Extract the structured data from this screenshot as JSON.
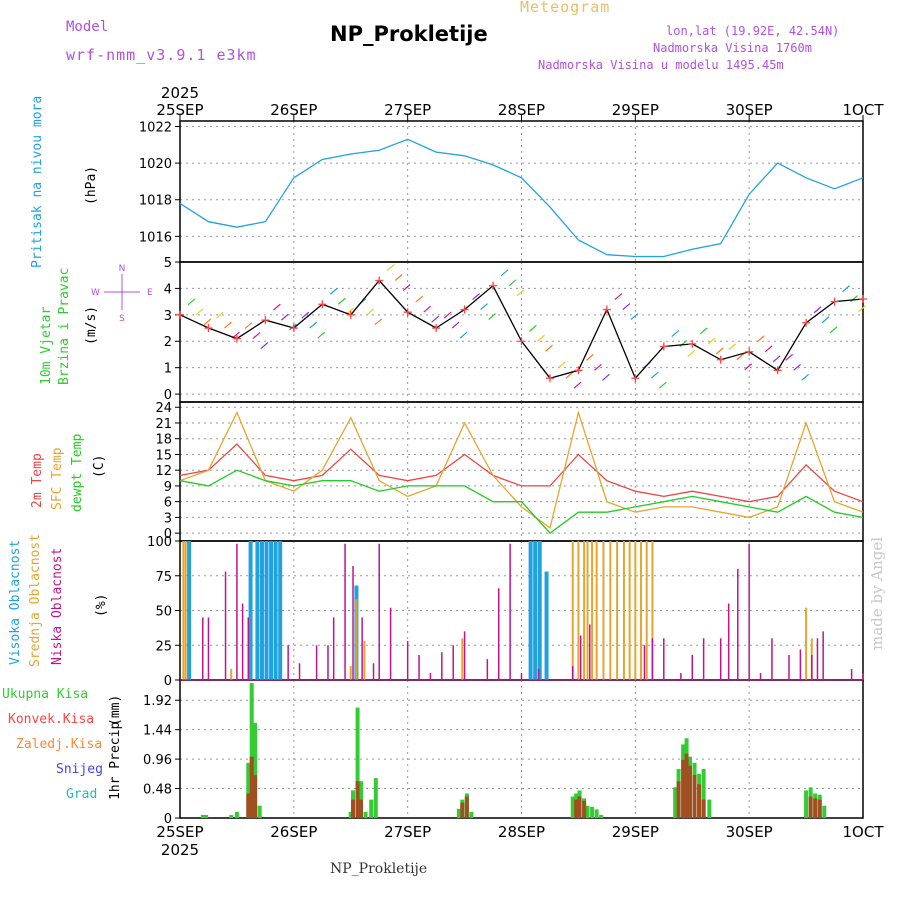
{
  "header": {
    "title": "NP_Prokletije",
    "meteogram_label": "Meteogram",
    "model_label": "Model",
    "model_name": "wrf-nmm_v3.9.1 e3km",
    "lonlat": "lon,lat (19.92E, 42.54N)",
    "altitude": "Nadmorska Visina 1760m",
    "altitude_model": "Nadmorska Visina u modelu 1495.45m"
  },
  "footer": {
    "station": "NP_Prokletije",
    "made_by": "made by Angel"
  },
  "colors": {
    "pressure": "#1fa3e0",
    "wind_label": "#2ecc2e",
    "wind_speed": "#000000",
    "wind_points": "#ff4444",
    "t2m": "#ee4444",
    "sfc": "#e6a530",
    "dewpt": "#22cc22",
    "high_cloud": "#1fa3e0",
    "mid_cloud": "#e6a530",
    "low_cloud": "#c0148c",
    "total_precip": "#33cc33",
    "conv_precip": "#a05020"
  },
  "chart_data": [
    {
      "panel": "pressure",
      "type": "line",
      "ylabel": "Pritisak na nivou mora",
      "yunit": "(hPa)",
      "yticks": [
        1016,
        1018,
        1020,
        1022
      ],
      "ylim": [
        1014.6,
        1022.3
      ],
      "top_labels": {
        "year": "2025",
        "days": [
          "25SEP",
          "26SEP",
          "27SEP",
          "28SEP",
          "29SEP",
          "30SEP",
          "1OCT"
        ]
      },
      "x_days": [
        0,
        0.25,
        0.5,
        0.75,
        1,
        1.25,
        1.5,
        1.75,
        2,
        2.25,
        2.5,
        2.75,
        3,
        3.25,
        3.5,
        3.75,
        4,
        4.25,
        4.5,
        4.75,
        5,
        5.25,
        5.5,
        5.75,
        6
      ],
      "values": [
        1017.8,
        1016.8,
        1016.5,
        1016.8,
        1019.2,
        1020.2,
        1020.5,
        1020.7,
        1021.3,
        1020.6,
        1020.4,
        1019.9,
        1019.2,
        1017.6,
        1015.8,
        1015.0,
        1014.9,
        1014.9,
        1015.3,
        1015.6,
        1018.3,
        1020.0,
        1019.2,
        1018.6,
        1019.2
      ]
    },
    {
      "panel": "wind",
      "type": "line",
      "ylabel": "10m Vjetar Brzina i Pravac",
      "yunit": "(m/s)",
      "compass": {
        "n": "N",
        "s": "S",
        "w": "W",
        "e": "E"
      },
      "yticks": [
        0,
        1,
        2,
        3,
        4,
        5
      ],
      "ylim": [
        -0.3,
        5
      ],
      "x_days": [
        0,
        0.25,
        0.5,
        0.75,
        1,
        1.25,
        1.5,
        1.75,
        2,
        2.25,
        2.5,
        2.75,
        3,
        3.25,
        3.5,
        3.75,
        4,
        4.25,
        4.5,
        4.75,
        5,
        5.25,
        5.5,
        5.75,
        6
      ],
      "speed": [
        3.0,
        2.5,
        2.1,
        2.8,
        2.5,
        3.4,
        3.0,
        4.3,
        3.1,
        2.5,
        3.2,
        4.1,
        2.0,
        0.6,
        0.9,
        3.2,
        0.6,
        1.8,
        1.9,
        1.3,
        1.6,
        0.9,
        2.7,
        3.5,
        3.6
      ]
    },
    {
      "panel": "temperature",
      "type": "line",
      "ylabel": "2m Temp, SFC Temp, dewpt Temp",
      "yunit": "(C)",
      "yticks": [
        0,
        3,
        6,
        9,
        12,
        15,
        18,
        21,
        24
      ],
      "ylim": [
        -1.5,
        25
      ],
      "x_days": [
        0,
        0.25,
        0.5,
        0.75,
        1,
        1.25,
        1.5,
        1.75,
        2,
        2.25,
        2.5,
        2.75,
        3,
        3.25,
        3.5,
        3.75,
        4,
        4.25,
        4.5,
        4.75,
        5,
        5.25,
        5.5,
        5.75,
        6
      ],
      "series": [
        {
          "name": "2m Temp",
          "values": [
            11,
            12,
            17,
            11,
            10,
            11,
            16,
            11,
            10,
            11,
            15,
            11,
            9,
            9,
            15,
            10,
            8,
            7,
            8,
            7,
            6,
            7,
            13,
            8,
            6
          ]
        },
        {
          "name": "SFC Temp",
          "values": [
            10,
            12,
            23,
            10,
            8,
            12,
            22,
            10,
            7,
            9,
            21,
            11,
            5,
            1,
            23,
            6,
            4,
            5,
            5,
            4,
            3,
            5,
            21,
            6,
            4
          ]
        },
        {
          "name": "dewpt Temp",
          "values": [
            10,
            9,
            12,
            10,
            9,
            10,
            10,
            8,
            9,
            9,
            9,
            6,
            6,
            0,
            4,
            4,
            5,
            6,
            7,
            6,
            5,
            4,
            7,
            4,
            3
          ]
        }
      ]
    },
    {
      "panel": "clouds",
      "type": "bar",
      "ylabel": "Visoka Oblacnost, Srednja Oblacnost, Niska Oblacnost",
      "yunit": "(%)",
      "yticks": [
        0,
        25,
        50,
        75,
        100
      ],
      "ylim": [
        0,
        100
      ],
      "series": [
        {
          "name": "Visoka Oblacnost",
          "x_days": [
            0.08,
            0.62,
            0.68,
            0.72,
            0.76,
            0.8,
            0.84,
            0.88,
            1.55,
            3.08,
            3.12,
            3.16,
            3.22
          ],
          "values": [
            100,
            100,
            100,
            100,
            100,
            100,
            100,
            100,
            68,
            100,
            100,
            100,
            78
          ]
        },
        {
          "name": "Srednja Oblacnost",
          "x_days": [
            0.03,
            0.05,
            0.45,
            1.5,
            1.55,
            1.62,
            2.48,
            3.45,
            3.5,
            3.55,
            3.58,
            3.62,
            3.66,
            3.72,
            3.78,
            3.84,
            3.9,
            3.95,
            4.0,
            4.05,
            4.1,
            4.15,
            5.5,
            5.55
          ],
          "values": [
            100,
            100,
            8,
            10,
            58,
            28,
            30,
            100,
            100,
            100,
            100,
            100,
            100,
            100,
            100,
            100,
            100,
            100,
            100,
            100,
            100,
            100,
            52,
            30
          ]
        },
        {
          "name": "Niska Oblacnost",
          "x_days": [
            0.2,
            0.25,
            0.4,
            0.5,
            0.55,
            0.6,
            0.95,
            1.05,
            1.2,
            1.3,
            1.35,
            1.45,
            1.52,
            1.6,
            1.7,
            1.75,
            1.85,
            2.0,
            2.1,
            2.2,
            2.3,
            2.4,
            2.5,
            2.7,
            2.8,
            2.9,
            3.0,
            3.15,
            3.45,
            3.52,
            3.6,
            4.08,
            4.15,
            4.25,
            4.4,
            4.5,
            4.6,
            4.75,
            4.82,
            4.9,
            5.0,
            5.1,
            5.2,
            5.35,
            5.45,
            5.55,
            5.6,
            5.65,
            5.9,
            6.0
          ],
          "values": [
            45,
            45,
            78,
            98,
            55,
            45,
            25,
            12,
            25,
            25,
            45,
            98,
            82,
            45,
            12,
            98,
            52,
            28,
            18,
            5,
            20,
            25,
            35,
            15,
            66,
            98,
            5,
            8,
            10,
            32,
            40,
            25,
            30,
            30,
            5,
            18,
            30,
            30,
            55,
            80,
            98,
            5,
            30,
            18,
            22,
            18,
            30,
            35,
            8,
            5
          ]
        }
      ]
    },
    {
      "panel": "precip",
      "type": "bar",
      "ylabel": "1hr Precip",
      "yunit": "(mm)",
      "yticks": [
        0,
        0.48,
        0.96,
        1.44,
        1.92
      ],
      "ylim": [
        0,
        2.25
      ],
      "bottom_labels": {
        "year": "2025",
        "days": [
          "25SEP",
          "26SEP",
          "27SEP",
          "28SEP",
          "29SEP",
          "30SEP",
          "1OCT"
        ]
      },
      "legend": [
        "Ukupna Kisa",
        "Konvek.Kisa",
        "Zaledj.Kisa",
        "Snijeg",
        "Grad"
      ],
      "legend_colors": [
        "#33cc33",
        "#ff4444",
        "#ff8833",
        "#4444ee",
        "#22bbbb"
      ],
      "series": [
        {
          "name": "Ukupna Kisa",
          "x_days": [
            0.2,
            0.23,
            0.45,
            0.5,
            0.6,
            0.63,
            0.66,
            0.7,
            1.5,
            1.52,
            1.56,
            1.59,
            1.63,
            1.68,
            1.72,
            2.45,
            2.48,
            2.52,
            2.56,
            3.45,
            3.48,
            3.51,
            3.55,
            3.58,
            3.62,
            3.66,
            3.7,
            4.35,
            4.38,
            4.42,
            4.45,
            4.48,
            4.52,
            4.56,
            4.6,
            4.65,
            5.5,
            5.54,
            5.58,
            5.62,
            5.66
          ],
          "values": [
            0.05,
            0.05,
            0.05,
            0.1,
            0.9,
            2.2,
            1.55,
            0.2,
            0.1,
            0.45,
            1.8,
            0.6,
            0.1,
            0.3,
            0.65,
            0.15,
            0.3,
            0.4,
            0.1,
            0.35,
            0.4,
            0.45,
            0.32,
            0.2,
            0.18,
            0.14,
            0.05,
            0.5,
            0.8,
            1.2,
            1.3,
            1.0,
            0.9,
            0.72,
            0.8,
            0.3,
            0.45,
            0.5,
            0.4,
            0.38,
            0.2
          ]
        },
        {
          "name": "Konvek.Kisa",
          "x_days": [
            0.6,
            0.63,
            0.66,
            1.52,
            1.56,
            1.59,
            2.48,
            2.52,
            3.48,
            3.51,
            3.55,
            4.38,
            4.42,
            4.45,
            4.48,
            4.52,
            4.56,
            4.6,
            5.54,
            5.58,
            5.62
          ],
          "values": [
            0.4,
            1.0,
            0.7,
            0.3,
            0.6,
            0.3,
            0.25,
            0.35,
            0.3,
            0.35,
            0.28,
            0.6,
            0.95,
            1.05,
            0.85,
            0.7,
            0.55,
            0.3,
            0.35,
            0.32,
            0.3
          ]
        }
      ]
    }
  ]
}
